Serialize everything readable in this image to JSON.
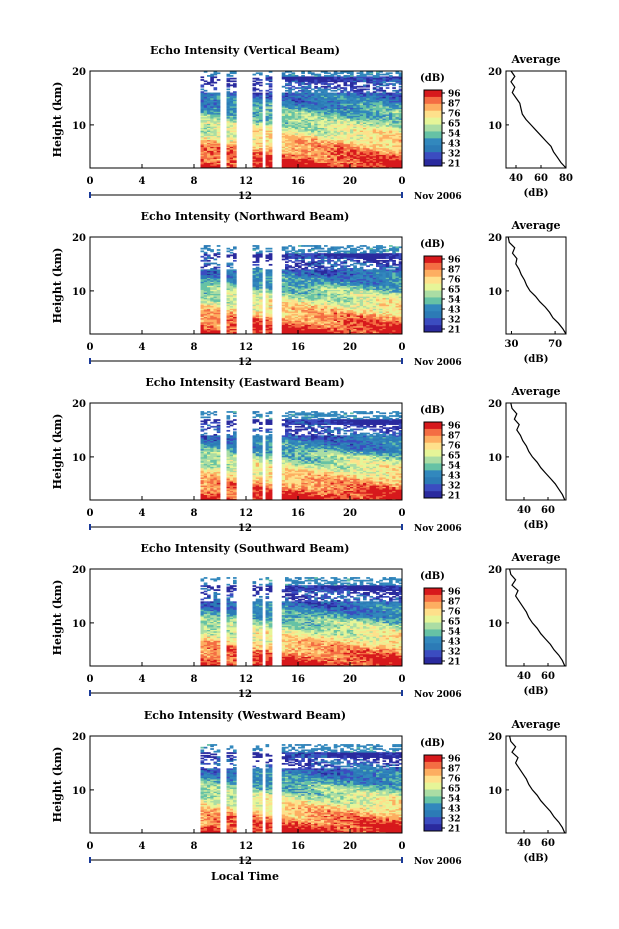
{
  "page": {
    "xlabel": "Local Time"
  },
  "colorbar": {
    "unit": "(dB)",
    "ticks": [
      "96",
      "87",
      "76",
      "65",
      "54",
      "43",
      "32",
      "21"
    ],
    "colors": [
      "#d7191c",
      "#f46d43",
      "#fdae61",
      "#fee08b",
      "#e6f598",
      "#abdda4",
      "#66c2a5",
      "#3288bd",
      "#2c7bb6",
      "#3b4cc0",
      "#2a2a9e"
    ]
  },
  "chart_data": [
    {
      "type": "heatmap",
      "title": "Echo Intensity (Vertical Beam)",
      "ylabel": "Height (km)",
      "x_ticks": [
        "0",
        "4",
        "8",
        "12",
        "16",
        "20",
        "0"
      ],
      "y_ticks": [
        "20",
        "10"
      ],
      "ylim": [
        2,
        20
      ],
      "xlim": [
        0,
        24
      ],
      "date_tick": "12",
      "date_label": "Nov 2006",
      "data_gaps_hours": [
        [
          0,
          8.6
        ],
        [
          10.1,
          10.5
        ],
        [
          11.3,
          12.6
        ],
        [
          13.2,
          13.4
        ],
        [
          14.1,
          14.7
        ]
      ],
      "top_height_km": 19,
      "average": {
        "title": "Average",
        "xlabel": "(dB)",
        "x_ticks": [
          "40",
          "60",
          "80"
        ],
        "y_ticks": [
          "20",
          "10"
        ],
        "xlim": [
          32,
          80
        ],
        "ylim": [
          2,
          20
        ],
        "profile": [
          [
            80,
            2
          ],
          [
            76,
            3
          ],
          [
            73,
            4
          ],
          [
            70,
            5
          ],
          [
            68,
            6
          ],
          [
            64,
            7
          ],
          [
            60,
            8
          ],
          [
            56,
            9
          ],
          [
            52,
            10
          ],
          [
            48,
            11
          ],
          [
            45,
            12
          ],
          [
            44,
            13
          ],
          [
            43,
            14
          ],
          [
            40,
            15
          ],
          [
            37,
            16
          ],
          [
            39,
            17
          ],
          [
            36,
            18
          ],
          [
            39,
            19
          ],
          [
            36,
            20
          ]
        ]
      }
    },
    {
      "type": "heatmap",
      "title": "Echo Intensity (Northward Beam)",
      "ylabel": "Height (km)",
      "x_ticks": [
        "0",
        "4",
        "8",
        "12",
        "16",
        "20",
        "0"
      ],
      "y_ticks": [
        "20",
        "10"
      ],
      "ylim": [
        2,
        20
      ],
      "xlim": [
        0,
        24
      ],
      "date_tick": "12",
      "date_label": "Nov 2006",
      "data_gaps_hours": [
        [
          0,
          8.6
        ],
        [
          10.1,
          10.5
        ],
        [
          11.3,
          12.6
        ],
        [
          13.2,
          13.4
        ],
        [
          14.1,
          14.7
        ]
      ],
      "top_height_km": 17,
      "average": {
        "title": "Average",
        "xlabel": "(dB)",
        "x_ticks": [
          "30",
          "70"
        ],
        "y_ticks": [
          "20",
          "10"
        ],
        "xlim": [
          25,
          80
        ],
        "ylim": [
          2,
          20
        ],
        "profile": [
          [
            80,
            2
          ],
          [
            77,
            3
          ],
          [
            73,
            4
          ],
          [
            68,
            5
          ],
          [
            65,
            6
          ],
          [
            61,
            7
          ],
          [
            56,
            8
          ],
          [
            52,
            9
          ],
          [
            47,
            10
          ],
          [
            44,
            11
          ],
          [
            42,
            12
          ],
          [
            39,
            13
          ],
          [
            37,
            14
          ],
          [
            34,
            15
          ],
          [
            35,
            16
          ],
          [
            31,
            17
          ],
          [
            33,
            18
          ],
          [
            28,
            19
          ],
          [
            27,
            20
          ]
        ]
      }
    },
    {
      "type": "heatmap",
      "title": "Echo Intensity (Eastward Beam)",
      "ylabel": "Height (km)",
      "x_ticks": [
        "0",
        "4",
        "8",
        "12",
        "16",
        "20",
        "0"
      ],
      "y_ticks": [
        "20",
        "10"
      ],
      "ylim": [
        2,
        20
      ],
      "xlim": [
        0,
        24
      ],
      "date_tick": "12",
      "date_label": "Nov 2006",
      "data_gaps_hours": [
        [
          0,
          8.6
        ],
        [
          10.1,
          10.5
        ],
        [
          11.3,
          12.6
        ],
        [
          13.2,
          13.4
        ],
        [
          14.1,
          14.7
        ]
      ],
      "top_height_km": 17,
      "average": {
        "title": "Average",
        "xlabel": "(dB)",
        "x_ticks": [
          "40",
          "60"
        ],
        "y_ticks": [
          "20",
          "10"
        ],
        "xlim": [
          25,
          75
        ],
        "ylim": [
          2,
          20
        ],
        "profile": [
          [
            74,
            2
          ],
          [
            72,
            3
          ],
          [
            69,
            4
          ],
          [
            66,
            5
          ],
          [
            62,
            6
          ],
          [
            58,
            7
          ],
          [
            54,
            8
          ],
          [
            51,
            9
          ],
          [
            47,
            10
          ],
          [
            44,
            11
          ],
          [
            42,
            12
          ],
          [
            39,
            13
          ],
          [
            37,
            14
          ],
          [
            34,
            15
          ],
          [
            36,
            16
          ],
          [
            32,
            17
          ],
          [
            34,
            18
          ],
          [
            30,
            19
          ],
          [
            29,
            20
          ]
        ]
      }
    },
    {
      "type": "heatmap",
      "title": "Echo Intensity (Southward Beam)",
      "ylabel": "Height (km)",
      "x_ticks": [
        "0",
        "4",
        "8",
        "12",
        "16",
        "20",
        "0"
      ],
      "y_ticks": [
        "20",
        "10"
      ],
      "ylim": [
        2,
        20
      ],
      "xlim": [
        0,
        24
      ],
      "date_tick": "12",
      "date_label": "Nov 2006",
      "data_gaps_hours": [
        [
          0,
          8.6
        ],
        [
          10.1,
          10.5
        ],
        [
          11.3,
          12.6
        ],
        [
          13.2,
          13.4
        ],
        [
          14.1,
          14.7
        ]
      ],
      "top_height_km": 17,
      "average": {
        "title": "Average",
        "xlabel": "(dB)",
        "x_ticks": [
          "40",
          "60"
        ],
        "y_ticks": [
          "20",
          "10"
        ],
        "xlim": [
          25,
          75
        ],
        "ylim": [
          2,
          20
        ],
        "profile": [
          [
            74,
            2
          ],
          [
            72,
            3
          ],
          [
            69,
            4
          ],
          [
            65,
            5
          ],
          [
            62,
            6
          ],
          [
            58,
            7
          ],
          [
            54,
            8
          ],
          [
            51,
            9
          ],
          [
            47,
            10
          ],
          [
            44,
            11
          ],
          [
            42,
            12
          ],
          [
            39,
            13
          ],
          [
            36,
            14
          ],
          [
            33,
            15
          ],
          [
            35,
            16
          ],
          [
            30,
            17
          ],
          [
            33,
            18
          ],
          [
            29,
            19
          ],
          [
            28,
            20
          ]
        ]
      }
    },
    {
      "type": "heatmap",
      "title": "Echo Intensity (Westward Beam)",
      "ylabel": "Height (km)",
      "x_ticks": [
        "0",
        "4",
        "8",
        "12",
        "16",
        "20",
        "0"
      ],
      "y_ticks": [
        "20",
        "10"
      ],
      "ylim": [
        2,
        20
      ],
      "xlim": [
        0,
        24
      ],
      "date_tick": "12",
      "date_label": "Nov 2006",
      "data_gaps_hours": [
        [
          0,
          8.6
        ],
        [
          10.1,
          10.5
        ],
        [
          11.3,
          12.6
        ],
        [
          13.2,
          13.4
        ],
        [
          14.1,
          14.7
        ]
      ],
      "top_height_km": 17,
      "average": {
        "title": "Average",
        "xlabel": "(dB)",
        "x_ticks": [
          "40",
          "60"
        ],
        "y_ticks": [
          "20",
          "10"
        ],
        "xlim": [
          25,
          75
        ],
        "ylim": [
          2,
          20
        ],
        "profile": [
          [
            74,
            2
          ],
          [
            72,
            3
          ],
          [
            69,
            4
          ],
          [
            65,
            5
          ],
          [
            62,
            6
          ],
          [
            58,
            7
          ],
          [
            54,
            8
          ],
          [
            51,
            9
          ],
          [
            47,
            10
          ],
          [
            44,
            11
          ],
          [
            42,
            12
          ],
          [
            39,
            13
          ],
          [
            36,
            14
          ],
          [
            33,
            15
          ],
          [
            35,
            16
          ],
          [
            30,
            17
          ],
          [
            33,
            18
          ],
          [
            29,
            19
          ],
          [
            28,
            20
          ]
        ]
      }
    }
  ]
}
